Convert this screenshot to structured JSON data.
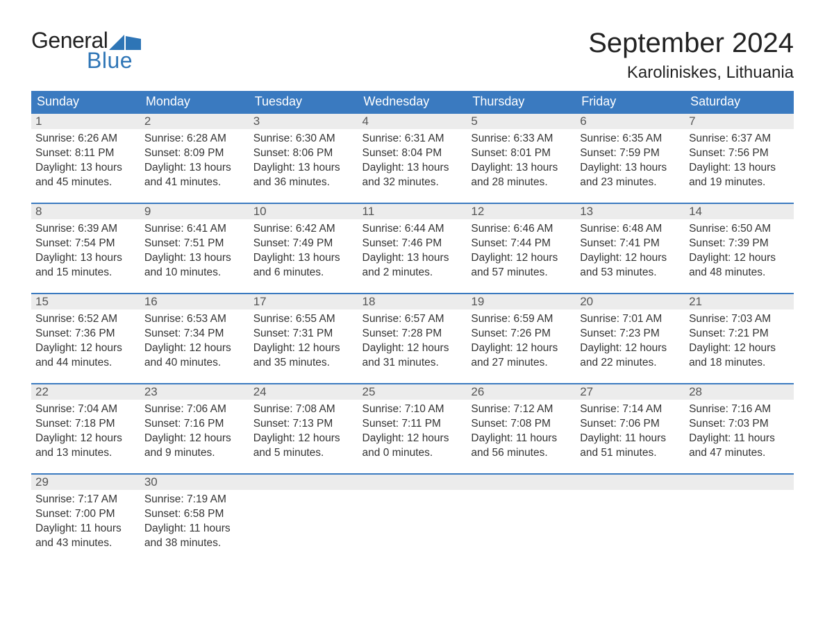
{
  "brand": {
    "top": "General",
    "bottom": "Blue"
  },
  "header": {
    "month": "September 2024",
    "location": "Karoliniskes, Lithuania"
  },
  "colors": {
    "header_bg": "#3a7ac0",
    "header_text": "#ffffff",
    "daynum_bg": "#ececec",
    "row_border": "#3a7ac0",
    "logo_blue": "#2e75b6",
    "body_text": "#333333",
    "background": "#ffffff"
  },
  "days_of_week": [
    "Sunday",
    "Monday",
    "Tuesday",
    "Wednesday",
    "Thursday",
    "Friday",
    "Saturday"
  ],
  "weeks": [
    [
      {
        "n": "1",
        "sunrise": "6:26 AM",
        "sunset": "8:11 PM",
        "dl_h": "13",
        "dl_m": "45"
      },
      {
        "n": "2",
        "sunrise": "6:28 AM",
        "sunset": "8:09 PM",
        "dl_h": "13",
        "dl_m": "41"
      },
      {
        "n": "3",
        "sunrise": "6:30 AM",
        "sunset": "8:06 PM",
        "dl_h": "13",
        "dl_m": "36"
      },
      {
        "n": "4",
        "sunrise": "6:31 AM",
        "sunset": "8:04 PM",
        "dl_h": "13",
        "dl_m": "32"
      },
      {
        "n": "5",
        "sunrise": "6:33 AM",
        "sunset": "8:01 PM",
        "dl_h": "13",
        "dl_m": "28"
      },
      {
        "n": "6",
        "sunrise": "6:35 AM",
        "sunset": "7:59 PM",
        "dl_h": "13",
        "dl_m": "23"
      },
      {
        "n": "7",
        "sunrise": "6:37 AM",
        "sunset": "7:56 PM",
        "dl_h": "13",
        "dl_m": "19"
      }
    ],
    [
      {
        "n": "8",
        "sunrise": "6:39 AM",
        "sunset": "7:54 PM",
        "dl_h": "13",
        "dl_m": "15"
      },
      {
        "n": "9",
        "sunrise": "6:41 AM",
        "sunset": "7:51 PM",
        "dl_h": "13",
        "dl_m": "10"
      },
      {
        "n": "10",
        "sunrise": "6:42 AM",
        "sunset": "7:49 PM",
        "dl_h": "13",
        "dl_m": "6"
      },
      {
        "n": "11",
        "sunrise": "6:44 AM",
        "sunset": "7:46 PM",
        "dl_h": "13",
        "dl_m": "2"
      },
      {
        "n": "12",
        "sunrise": "6:46 AM",
        "sunset": "7:44 PM",
        "dl_h": "12",
        "dl_m": "57"
      },
      {
        "n": "13",
        "sunrise": "6:48 AM",
        "sunset": "7:41 PM",
        "dl_h": "12",
        "dl_m": "53"
      },
      {
        "n": "14",
        "sunrise": "6:50 AM",
        "sunset": "7:39 PM",
        "dl_h": "12",
        "dl_m": "48"
      }
    ],
    [
      {
        "n": "15",
        "sunrise": "6:52 AM",
        "sunset": "7:36 PM",
        "dl_h": "12",
        "dl_m": "44"
      },
      {
        "n": "16",
        "sunrise": "6:53 AM",
        "sunset": "7:34 PM",
        "dl_h": "12",
        "dl_m": "40"
      },
      {
        "n": "17",
        "sunrise": "6:55 AM",
        "sunset": "7:31 PM",
        "dl_h": "12",
        "dl_m": "35"
      },
      {
        "n": "18",
        "sunrise": "6:57 AM",
        "sunset": "7:28 PM",
        "dl_h": "12",
        "dl_m": "31"
      },
      {
        "n": "19",
        "sunrise": "6:59 AM",
        "sunset": "7:26 PM",
        "dl_h": "12",
        "dl_m": "27"
      },
      {
        "n": "20",
        "sunrise": "7:01 AM",
        "sunset": "7:23 PM",
        "dl_h": "12",
        "dl_m": "22"
      },
      {
        "n": "21",
        "sunrise": "7:03 AM",
        "sunset": "7:21 PM",
        "dl_h": "12",
        "dl_m": "18"
      }
    ],
    [
      {
        "n": "22",
        "sunrise": "7:04 AM",
        "sunset": "7:18 PM",
        "dl_h": "12",
        "dl_m": "13"
      },
      {
        "n": "23",
        "sunrise": "7:06 AM",
        "sunset": "7:16 PM",
        "dl_h": "12",
        "dl_m": "9"
      },
      {
        "n": "24",
        "sunrise": "7:08 AM",
        "sunset": "7:13 PM",
        "dl_h": "12",
        "dl_m": "5"
      },
      {
        "n": "25",
        "sunrise": "7:10 AM",
        "sunset": "7:11 PM",
        "dl_h": "12",
        "dl_m": "0"
      },
      {
        "n": "26",
        "sunrise": "7:12 AM",
        "sunset": "7:08 PM",
        "dl_h": "11",
        "dl_m": "56"
      },
      {
        "n": "27",
        "sunrise": "7:14 AM",
        "sunset": "7:06 PM",
        "dl_h": "11",
        "dl_m": "51"
      },
      {
        "n": "28",
        "sunrise": "7:16 AM",
        "sunset": "7:03 PM",
        "dl_h": "11",
        "dl_m": "47"
      }
    ],
    [
      {
        "n": "29",
        "sunrise": "7:17 AM",
        "sunset": "7:00 PM",
        "dl_h": "11",
        "dl_m": "43"
      },
      {
        "n": "30",
        "sunrise": "7:19 AM",
        "sunset": "6:58 PM",
        "dl_h": "11",
        "dl_m": "38"
      },
      null,
      null,
      null,
      null,
      null
    ]
  ],
  "labels": {
    "sunrise": "Sunrise: ",
    "sunset": "Sunset: ",
    "daylight_pre": "Daylight: ",
    "hours": " hours",
    "and": "and ",
    "minutes": " minutes."
  }
}
